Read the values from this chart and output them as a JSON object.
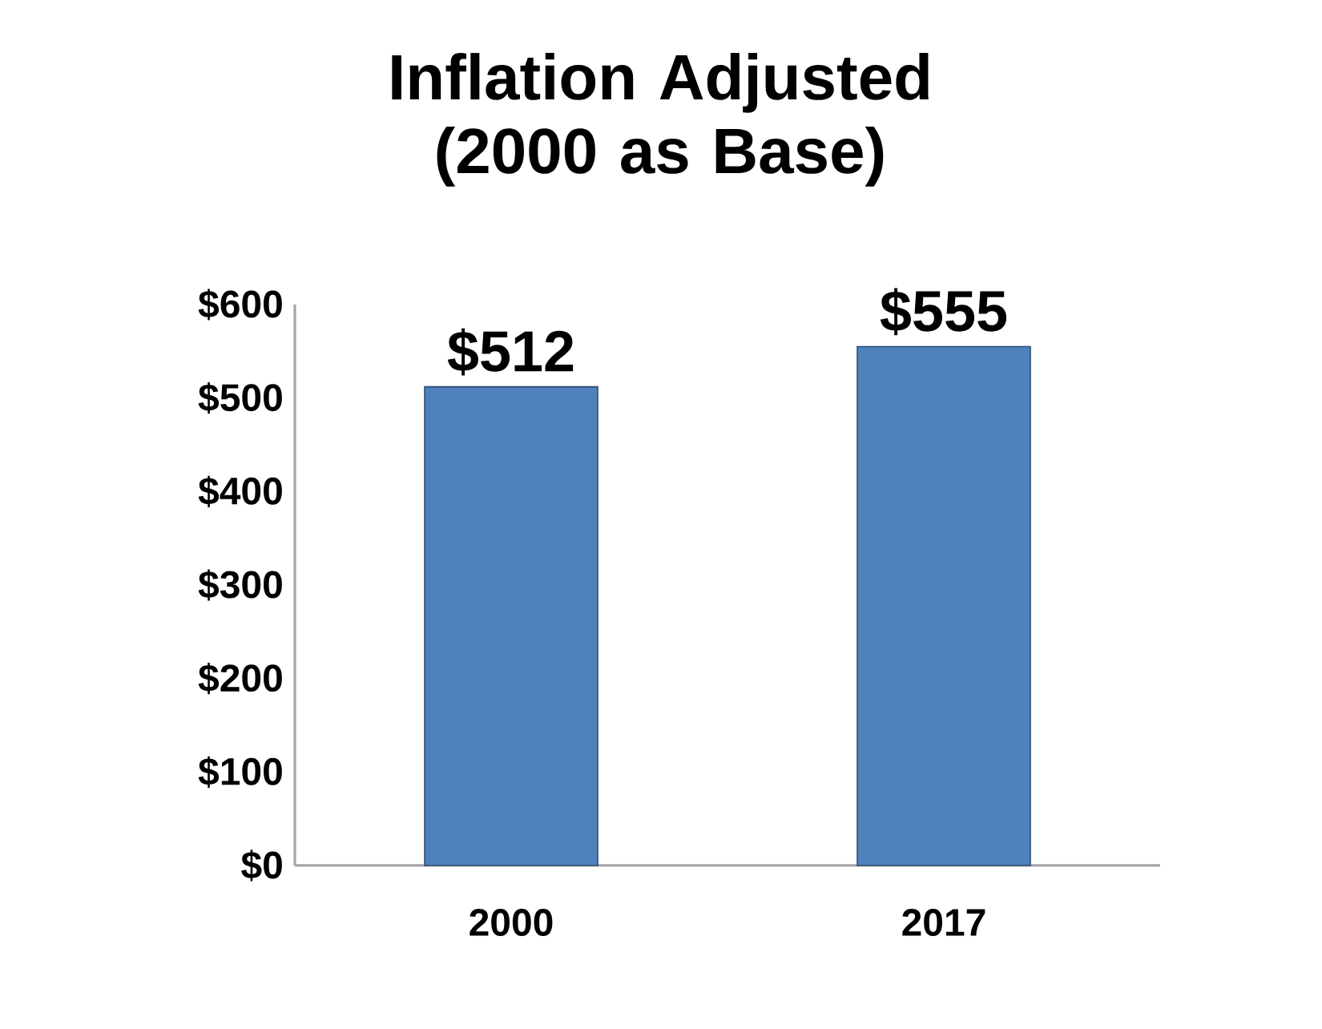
{
  "chart_data": {
    "type": "bar",
    "title": "Inflation Adjusted (2000 as Base)",
    "categories": [
      "2000",
      "2017"
    ],
    "values": [
      512,
      555
    ],
    "color": "#4f81bd",
    "value_labels": [
      "$512",
      "$555"
    ],
    "ylim": [
      0,
      600
    ],
    "yticks": [
      {
        "value": 0,
        "label": "$0"
      },
      {
        "value": 100,
        "label": "$100"
      },
      {
        "value": 200,
        "label": "$200"
      },
      {
        "value": 300,
        "label": "$300"
      },
      {
        "value": 400,
        "label": "$400"
      },
      {
        "value": 500,
        "label": "$500"
      },
      {
        "value": 600,
        "label": "$600"
      }
    ]
  }
}
